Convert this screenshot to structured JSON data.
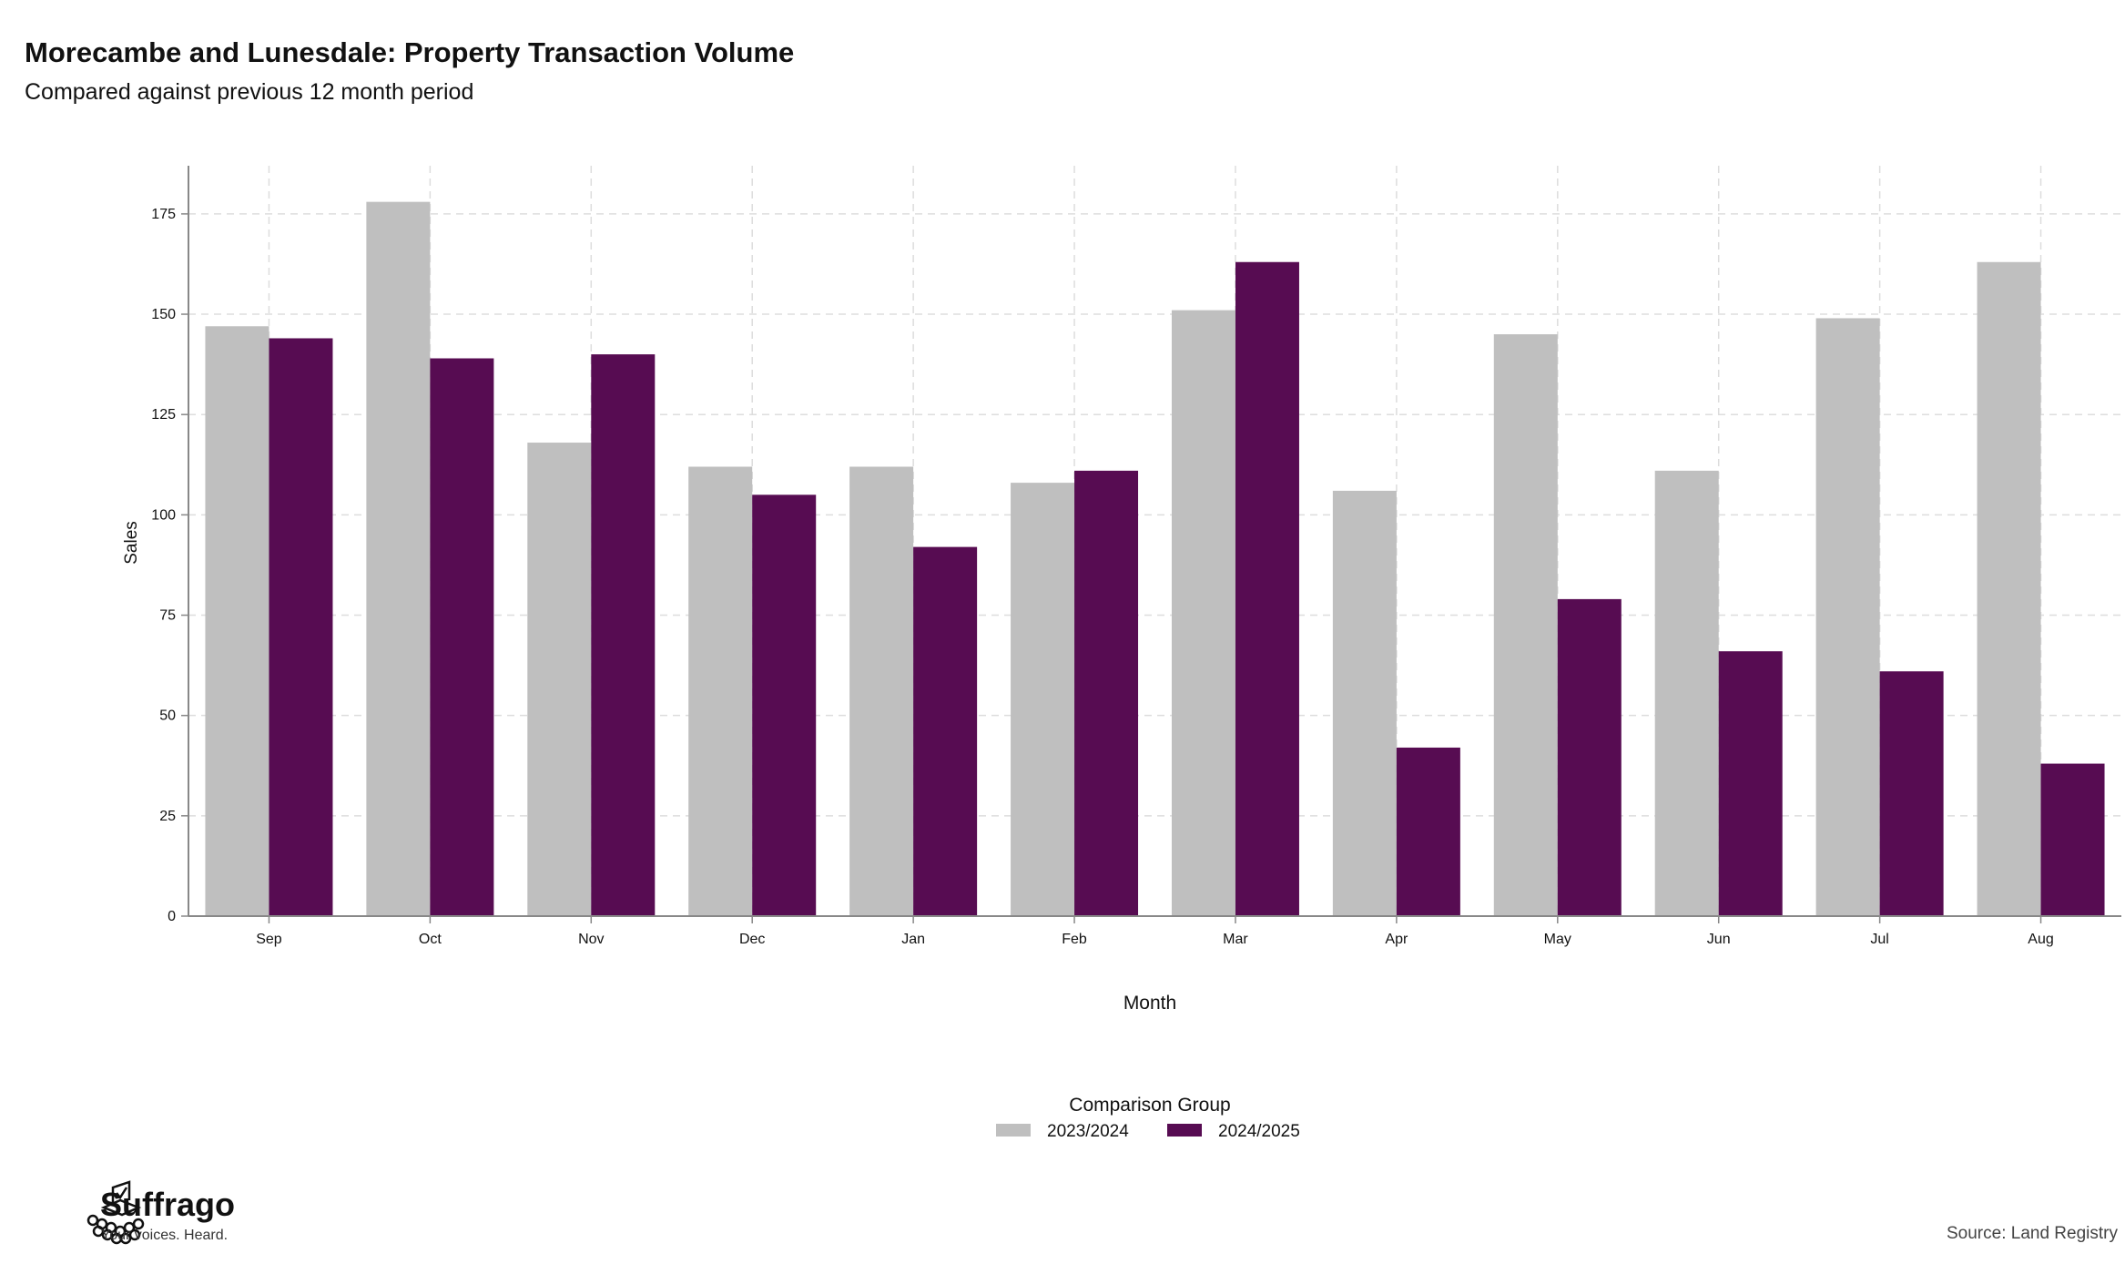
{
  "title": "Morecambe and Lunesdale: Property Transaction Volume",
  "subtitle": "Compared against previous 12 month period",
  "source": "Source: Land Registry",
  "brand": {
    "name": "Suffrago",
    "tagline": "Your voices. Heard."
  },
  "colors": {
    "series_2023": "#bfbfbf",
    "series_2024": "#570c52",
    "grid": "#dddddd",
    "axis": "#888888"
  },
  "chart_data": {
    "type": "bar",
    "xlabel": "Month",
    "ylabel": "Sales",
    "ylim": [
      0,
      187
    ],
    "yticks": [
      0,
      25,
      50,
      75,
      100,
      125,
      150,
      175
    ],
    "grid": true,
    "legend": {
      "title": "Comparison Group",
      "position": "bottom-center"
    },
    "categories": [
      "Sep",
      "Oct",
      "Nov",
      "Dec",
      "Jan",
      "Feb",
      "Mar",
      "Apr",
      "May",
      "Jun",
      "Jul",
      "Aug"
    ],
    "series": [
      {
        "name": "2023/2024",
        "color": "#bfbfbf",
        "values": [
          147,
          178,
          118,
          112,
          112,
          108,
          151,
          106,
          145,
          111,
          149,
          163
        ]
      },
      {
        "name": "2024/2025",
        "color": "#570c52",
        "values": [
          144,
          139,
          140,
          105,
          92,
          111,
          163,
          42,
          79,
          66,
          61,
          38
        ]
      }
    ]
  }
}
